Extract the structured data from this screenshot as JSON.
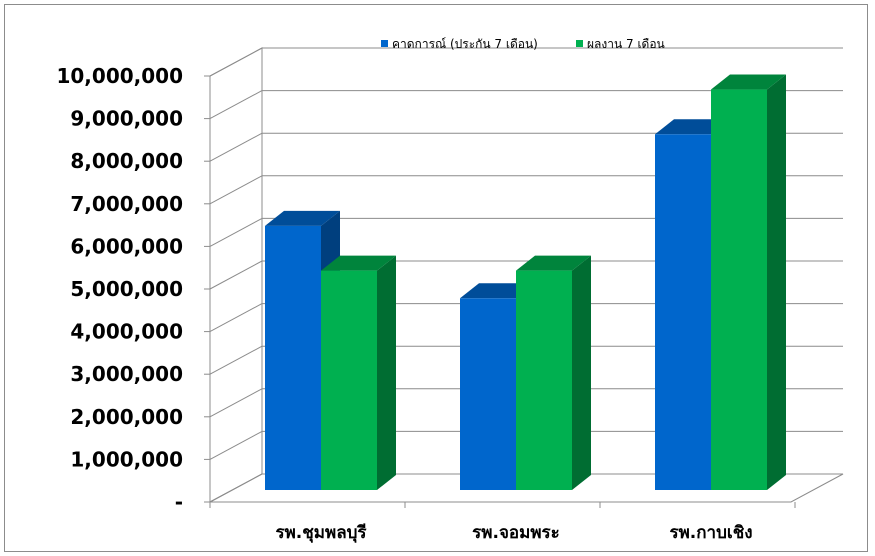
{
  "chart_data": {
    "type": "bar",
    "style": "3d-clustered-column",
    "categories": [
      "รพ.ชุมพลบุรี",
      "รพ.จอมพระ",
      "รพ.กาบเชิง"
    ],
    "series": [
      {
        "name": "คาดการณ์ (ประกัน 7 เดือน)",
        "values": [
          6200000,
          4500000,
          8350000
        ],
        "color": "#0066CC"
      },
      {
        "name": "ผลงาน 7 เดือน",
        "values": [
          5150000,
          5150000,
          9400000
        ],
        "color": "#00B050"
      }
    ],
    "ylim": [
      0,
      10000000
    ],
    "yticks": [
      0,
      1000000,
      2000000,
      3000000,
      4000000,
      5000000,
      6000000,
      7000000,
      8000000,
      9000000,
      10000000
    ],
    "ytick_labels": [
      "-",
      "1,000,000",
      "2,000,000",
      "3,000,000",
      "4,000,000",
      "5,000,000",
      "6,000,000",
      "7,000,000",
      "8,000,000",
      "9,000,000",
      "10,000,000"
    ],
    "title": "",
    "xlabel": "",
    "ylabel": "",
    "grid": true,
    "legend_position": "top"
  }
}
